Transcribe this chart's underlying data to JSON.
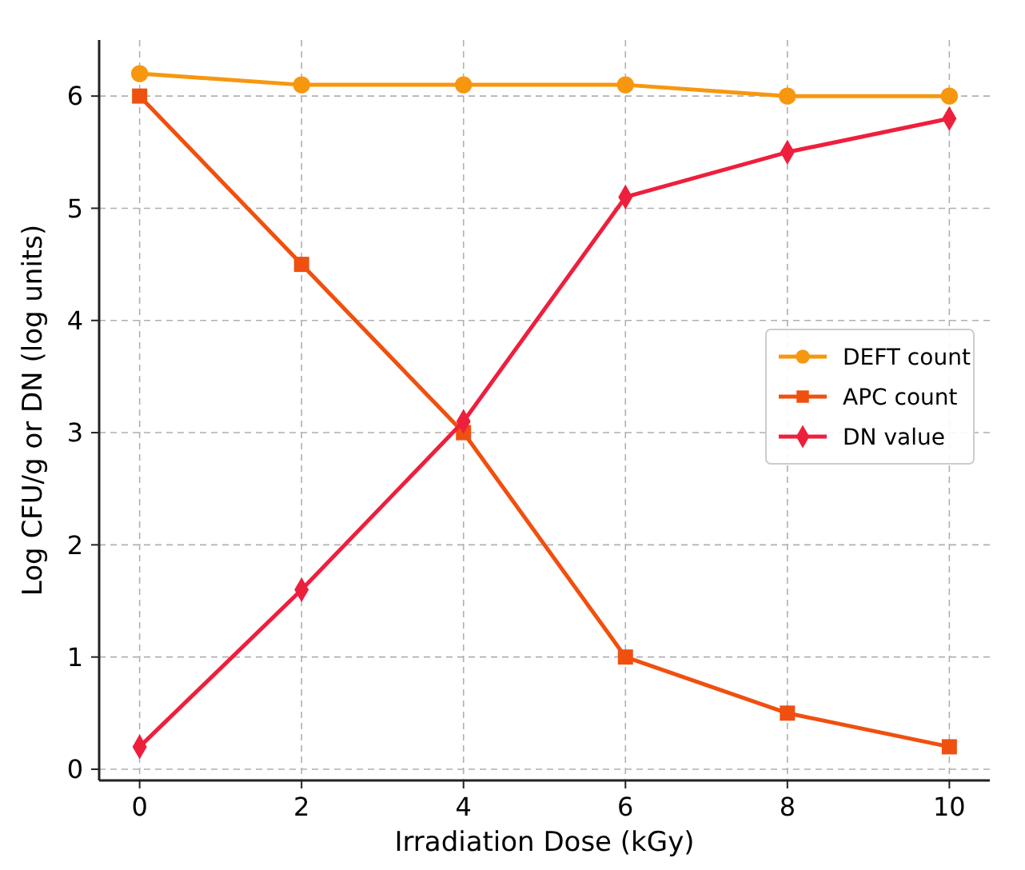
{
  "chart_data": {
    "type": "line",
    "xlabel": "Irradiation Dose (kGy)",
    "ylabel": "Log CFU/g or DN (log units)",
    "x": [
      0,
      2,
      4,
      6,
      8,
      10
    ],
    "series": [
      {
        "name": "DEFT count",
        "color": "#f7970f",
        "marker": "circle",
        "values": [
          6.2,
          6.1,
          6.1,
          6.1,
          6.0,
          6.0
        ]
      },
      {
        "name": "APC count",
        "color": "#f0500f",
        "marker": "square",
        "values": [
          6.0,
          4.5,
          3.0,
          1.0,
          0.5,
          0.2
        ]
      },
      {
        "name": "DN value",
        "color": "#ee1f3d",
        "marker": "diamond",
        "values": [
          0.2,
          1.6,
          3.1,
          5.1,
          5.5,
          5.8
        ]
      }
    ],
    "xlim": [
      -0.5,
      10.5
    ],
    "ylim": [
      -0.1,
      6.5
    ],
    "xticks": [
      0,
      2,
      4,
      6,
      8,
      10
    ],
    "yticks": [
      0,
      1,
      2,
      3,
      4,
      5,
      6
    ],
    "grid": true,
    "legend": "right",
    "line_style": "solid"
  }
}
